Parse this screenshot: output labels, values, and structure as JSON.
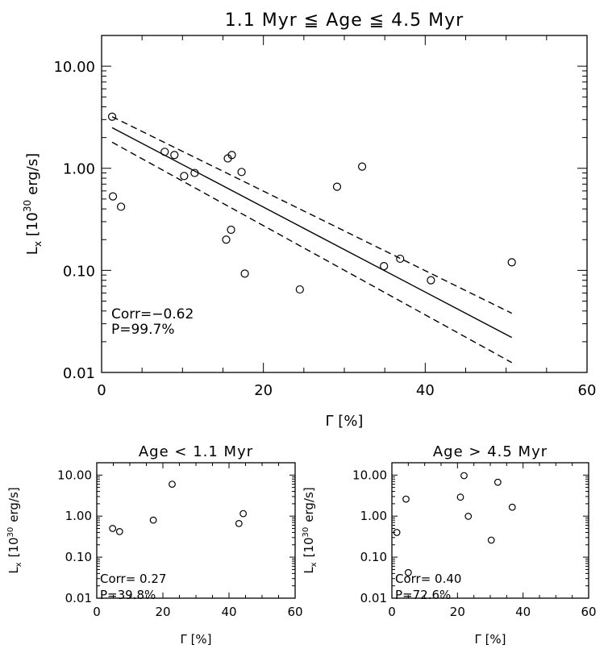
{
  "chart_data": [
    {
      "type": "scatter",
      "title": "1.1 Myr ≦ Age ≦ 4.5 Myr",
      "xlabel": "Γ [%]",
      "ylabel_main": "L",
      "ylabel_sub": "x",
      "ylabel_rest": "[10",
      "ylabel_sup": "30",
      "ylabel_unit": "erg/s]",
      "xlim": [
        0,
        60
      ],
      "ylim": [
        0.01,
        20
      ],
      "yscale": "log",
      "xticks": [
        0,
        20,
        40,
        60
      ],
      "yticks": [
        0.01,
        0.1,
        1.0,
        10.0
      ],
      "ytick_labels": [
        "0.01",
        "0.10",
        "1.00",
        "10.00"
      ],
      "points": {
        "x": [
          1.3,
          1.4,
          2.4,
          7.8,
          9.0,
          10.2,
          11.5,
          15.4,
          15.6,
          16.0,
          16.1,
          17.3,
          17.7,
          24.5,
          29.1,
          32.2,
          34.9,
          36.9,
          40.7,
          50.7
        ],
        "y": [
          3.2,
          0.53,
          0.42,
          1.45,
          1.35,
          0.84,
          0.9,
          0.2,
          1.25,
          0.25,
          1.35,
          0.92,
          0.093,
          0.065,
          0.66,
          1.04,
          0.11,
          0.13,
          0.08,
          0.12
        ]
      },
      "fit": {
        "x": [
          1.3,
          50.7
        ],
        "y": [
          2.5,
          0.022
        ]
      },
      "fit_upper": {
        "x": [
          1.3,
          50.7
        ],
        "y": [
          3.2,
          0.038
        ]
      },
      "fit_lower": {
        "x": [
          1.3,
          50.7
        ],
        "y": [
          1.8,
          0.0125
        ]
      },
      "annotation": {
        "corr": "Corr=−0.62",
        "p": "P=99.7%"
      }
    },
    {
      "type": "scatter",
      "title": "Age < 1.1 Myr",
      "xlabel": "Γ [%]",
      "ylabel_main": "L",
      "ylabel_sub": "x",
      "ylabel_rest": "[10",
      "ylabel_sup": "30",
      "ylabel_unit": "erg/s]",
      "xlim": [
        0,
        60
      ],
      "ylim": [
        0.01,
        20
      ],
      "yscale": "log",
      "xticks": [
        0,
        20,
        40,
        60
      ],
      "yticks": [
        0.01,
        0.1,
        1.0,
        10.0
      ],
      "ytick_labels": [
        "0.01",
        "0.10",
        "1.00",
        "10.00"
      ],
      "points": {
        "x": [
          4.8,
          6.9,
          17.1,
          22.8,
          43.0,
          44.3
        ],
        "y": [
          0.5,
          0.42,
          0.8,
          6.0,
          0.66,
          1.15
        ]
      },
      "annotation": {
        "corr": "Corr= 0.27",
        "p": "P=39.8%"
      }
    },
    {
      "type": "scatter",
      "title": "Age > 4.5 Myr",
      "xlabel": "Γ [%]",
      "ylabel_main": "L",
      "ylabel_sub": "x",
      "ylabel_rest": "[10",
      "ylabel_sup": "30",
      "ylabel_unit": "erg/s]",
      "xlim": [
        0,
        60
      ],
      "ylim": [
        0.01,
        20
      ],
      "yscale": "log",
      "xticks": [
        0,
        20,
        40,
        60
      ],
      "yticks": [
        0.01,
        0.1,
        1.0,
        10.0
      ],
      "ytick_labels": [
        "0.01",
        "0.10",
        "1.00",
        "10.00"
      ],
      "points": {
        "x": [
          1.5,
          4.3,
          5.0,
          20.9,
          22.0,
          23.3,
          30.3,
          32.3,
          36.7
        ],
        "y": [
          0.4,
          2.6,
          0.042,
          2.9,
          9.7,
          0.99,
          0.26,
          6.7,
          1.65
        ]
      },
      "annotation": {
        "corr": "Corr= 0.40",
        "p": "P=72.6%"
      }
    }
  ]
}
